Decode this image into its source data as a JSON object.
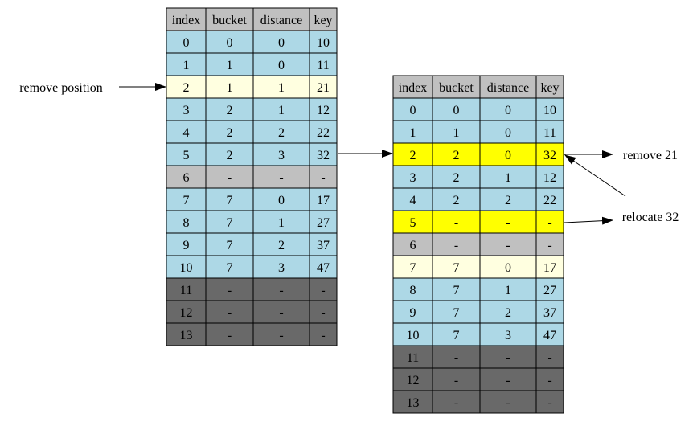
{
  "colors": {
    "header": "#c0c0c0",
    "occupied": "#add8e6",
    "highlight_pale": "#ffffe0",
    "highlight_yellow": "#ffff00",
    "tombstone": "#c0c0c0",
    "empty": "#696969"
  },
  "tables": [
    {
      "name": "before-table",
      "headers": [
        "index",
        "bucket",
        "distance",
        "key"
      ],
      "rows": [
        {
          "cells": [
            "0",
            "0",
            "0",
            "10"
          ],
          "state": "occupied"
        },
        {
          "cells": [
            "1",
            "1",
            "0",
            "11"
          ],
          "state": "occupied"
        },
        {
          "cells": [
            "2",
            "1",
            "1",
            "21"
          ],
          "state": "highlight_pale"
        },
        {
          "cells": [
            "3",
            "2",
            "1",
            "12"
          ],
          "state": "occupied"
        },
        {
          "cells": [
            "4",
            "2",
            "2",
            "22"
          ],
          "state": "occupied"
        },
        {
          "cells": [
            "5",
            "2",
            "3",
            "32"
          ],
          "state": "occupied"
        },
        {
          "cells": [
            "6",
            "-",
            "-",
            "-"
          ],
          "state": "tombstone"
        },
        {
          "cells": [
            "7",
            "7",
            "0",
            "17"
          ],
          "state": "occupied"
        },
        {
          "cells": [
            "8",
            "7",
            "1",
            "27"
          ],
          "state": "occupied"
        },
        {
          "cells": [
            "9",
            "7",
            "2",
            "37"
          ],
          "state": "occupied"
        },
        {
          "cells": [
            "10",
            "7",
            "3",
            "47"
          ],
          "state": "occupied"
        },
        {
          "cells": [
            "11",
            "-",
            "-",
            "-"
          ],
          "state": "empty"
        },
        {
          "cells": [
            "12",
            "-",
            "-",
            "-"
          ],
          "state": "empty"
        },
        {
          "cells": [
            "13",
            "-",
            "-",
            "-"
          ],
          "state": "empty"
        }
      ]
    },
    {
      "name": "after-table",
      "headers": [
        "index",
        "bucket",
        "distance",
        "key"
      ],
      "rows": [
        {
          "cells": [
            "0",
            "0",
            "0",
            "10"
          ],
          "state": "occupied"
        },
        {
          "cells": [
            "1",
            "1",
            "0",
            "11"
          ],
          "state": "occupied"
        },
        {
          "cells": [
            "2",
            "2",
            "0",
            "32"
          ],
          "state": "highlight_yellow"
        },
        {
          "cells": [
            "3",
            "2",
            "1",
            "12"
          ],
          "state": "occupied"
        },
        {
          "cells": [
            "4",
            "2",
            "2",
            "22"
          ],
          "state": "occupied"
        },
        {
          "cells": [
            "5",
            "-",
            "-",
            "-"
          ],
          "state": "highlight_yellow"
        },
        {
          "cells": [
            "6",
            "-",
            "-",
            "-"
          ],
          "state": "tombstone"
        },
        {
          "cells": [
            "7",
            "7",
            "0",
            "17"
          ],
          "state": "highlight_pale"
        },
        {
          "cells": [
            "8",
            "7",
            "1",
            "27"
          ],
          "state": "occupied"
        },
        {
          "cells": [
            "9",
            "7",
            "2",
            "37"
          ],
          "state": "occupied"
        },
        {
          "cells": [
            "10",
            "7",
            "3",
            "47"
          ],
          "state": "occupied"
        },
        {
          "cells": [
            "11",
            "-",
            "-",
            "-"
          ],
          "state": "empty"
        },
        {
          "cells": [
            "12",
            "-",
            "-",
            "-"
          ],
          "state": "empty"
        },
        {
          "cells": [
            "13",
            "-",
            "-",
            "-"
          ],
          "state": "empty"
        }
      ]
    }
  ],
  "labels": {
    "remove_position": "remove position",
    "remove_21": "remove 21",
    "relocate_32": "relocate 32"
  }
}
